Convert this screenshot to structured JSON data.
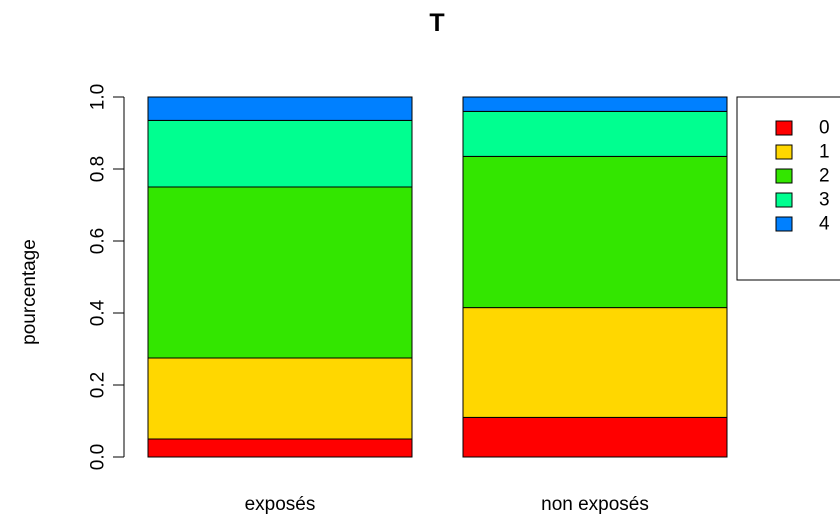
{
  "chart_data": {
    "type": "bar",
    "stacked": true,
    "title": "T",
    "xlabel": "",
    "ylabel": "pourcentage",
    "ylim": [
      0,
      1
    ],
    "yticks": [
      "0.0",
      "0.2",
      "0.4",
      "0.6",
      "0.8",
      "1.0"
    ],
    "yticks_values": [
      0,
      0.2,
      0.4,
      0.6,
      0.8,
      1.0
    ],
    "categories": [
      "exposés",
      "non exposés"
    ],
    "series": [
      {
        "name": "0",
        "color": "#FF0000",
        "values": [
          0.05,
          0.11
        ]
      },
      {
        "name": "1",
        "color": "#FFD700",
        "values": [
          0.225,
          0.305
        ]
      },
      {
        "name": "2",
        "color": "#33E600",
        "values": [
          0.475,
          0.42
        ]
      },
      {
        "name": "3",
        "color": "#00FF90",
        "values": [
          0.185,
          0.125
        ]
      },
      {
        "name": "4",
        "color": "#0080FF",
        "values": [
          0.065,
          0.04
        ]
      }
    ],
    "legend_position": "right",
    "grid": false
  }
}
